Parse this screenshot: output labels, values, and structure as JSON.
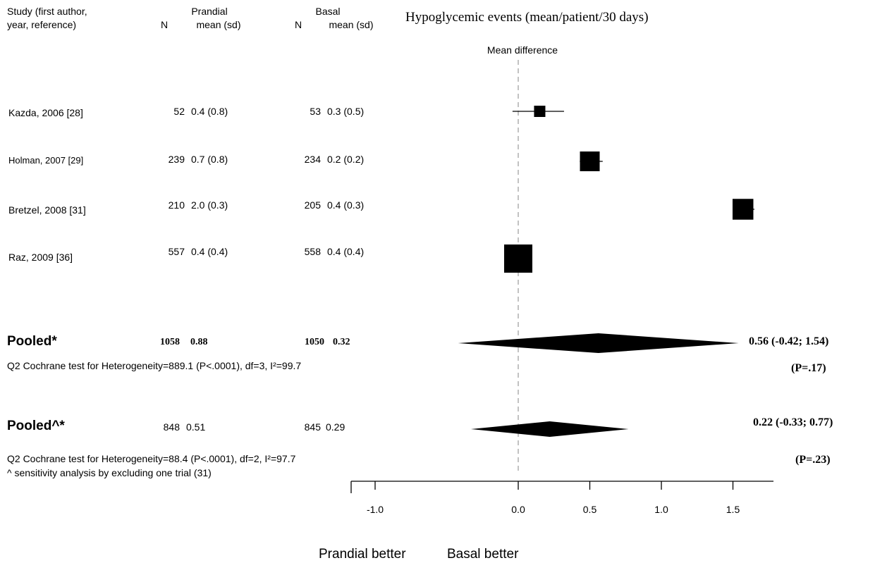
{
  "header": {
    "study_col_line1": "Study (first author,",
    "study_col_line2": "year, reference)",
    "prandial_label": "Prandial",
    "basal_label": "Basal",
    "n_label": "N",
    "mean_sd_label": "mean (sd)",
    "plot_title": "Hypoglycemic events (mean/patient/30 days)",
    "mean_difference_label": "Mean difference"
  },
  "studies": [
    {
      "name": "Kazda, 2006 [28]",
      "prandial_n": "52",
      "prandial_mean_sd": "0.4 (0.8)",
      "basal_n": "53",
      "basal_mean_sd": "0.3 (0.5)"
    },
    {
      "name": "Holman, 2007 [29]",
      "prandial_n": "239",
      "prandial_mean_sd": "0.7 (0.8)",
      "basal_n": "234",
      "basal_mean_sd": "0.2 (0.2)"
    },
    {
      "name": "Bretzel, 2008 [31]",
      "prandial_n": "210",
      "prandial_mean_sd": "2.0 (0.3)",
      "basal_n": "205",
      "basal_mean_sd": "0.4 (0.3)"
    },
    {
      "name": "Raz, 2009 [36]",
      "prandial_n": "557",
      "prandial_mean_sd": "0.4 (0.4)",
      "basal_n": "558",
      "basal_mean_sd": "0.4 (0.4)"
    }
  ],
  "pooled": [
    {
      "label": "Pooled*",
      "prandial_n": "1058",
      "prandial_mean": "0.88",
      "basal_n": "1050",
      "basal_mean": "0.32",
      "heterogeneity": "Q2  Cochrane test for Heterogeneity=889.1 (P<.0001), df=3, I²=99.7",
      "estimate_text": "0.56 (-0.42; 1.54)",
      "p_text": "(P=.17)"
    },
    {
      "label": "Pooled^*",
      "prandial_n": "848",
      "prandial_mean": "0.51",
      "basal_n": "845",
      "basal_mean": "0.29",
      "heterogeneity": "Q2  Cochrane test for Heterogeneity=88.4 (P<.0001), df=2, I²=97.7",
      "estimate_text": "0.22 (-0.33; 0.77)",
      "p_text": "(P=.23)"
    }
  ],
  "footnote": "^ sensitivity analysis by excluding one trial (31)",
  "direction_labels": {
    "left": "Prandial better",
    "right": "Basal better"
  },
  "colors": {
    "ink": "#000000",
    "reference_line": "#999999"
  },
  "chart_data": {
    "type": "forest",
    "title": "Hypoglycemic events (mean/patient/30 days)",
    "xlabel": "Mean difference",
    "xlim": [
      -1.0,
      1.8
    ],
    "xticks": [
      -1.0,
      0.0,
      0.5,
      1.0,
      1.5
    ],
    "xtick_labels": [
      "-1.0",
      "0.0",
      "0.5",
      "1.0",
      "1.5"
    ],
    "reference_line": 0.0,
    "studies": [
      {
        "name": "Kazda, 2006 [28]",
        "estimate": 0.15,
        "lower": -0.04,
        "upper": 0.32,
        "weight": 0.2
      },
      {
        "name": "Holman, 2007 [29]",
        "estimate": 0.5,
        "lower": 0.43,
        "upper": 0.59,
        "weight": 0.6
      },
      {
        "name": "Bretzel, 2008 [31]",
        "estimate": 1.57,
        "lower": 1.5,
        "upper": 1.65,
        "weight": 0.65
      },
      {
        "name": "Raz, 2009 [36]",
        "estimate": 0.0,
        "lower": -0.04,
        "upper": 0.04,
        "weight": 1.0
      }
    ],
    "pooled": [
      {
        "name": "Pooled*",
        "estimate": 0.56,
        "lower": -0.42,
        "upper": 1.54
      },
      {
        "name": "Pooled^*",
        "estimate": 0.22,
        "lower": -0.33,
        "upper": 0.77
      }
    ]
  }
}
